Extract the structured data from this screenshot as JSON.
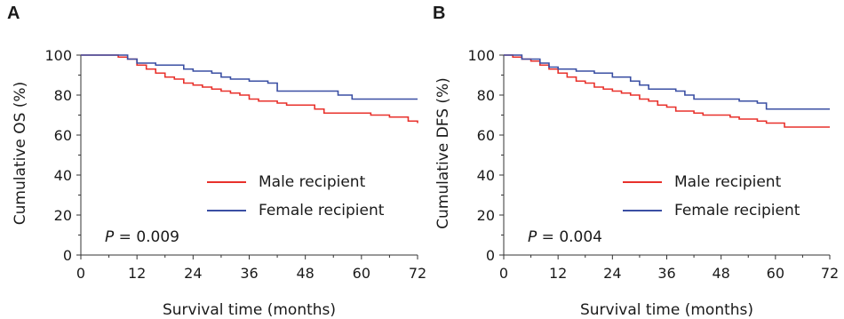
{
  "panels": [
    {
      "letter": "A"
    },
    {
      "letter": "B"
    }
  ],
  "chart_data": [
    {
      "type": "line",
      "panel": "A",
      "title": "",
      "xlabel": "Survival time (months)",
      "ylabel": "Cumulative OS (%)",
      "xlim": [
        0,
        72
      ],
      "ylim": [
        0,
        100
      ],
      "xticks": [
        0,
        12,
        24,
        36,
        48,
        60,
        72
      ],
      "yticks": [
        0,
        20,
        40,
        60,
        80,
        100
      ],
      "grid": false,
      "legend_position": "lower-right",
      "annotation": {
        "p_label": "P",
        "p_value": "= 0.009"
      },
      "series": [
        {
          "name": "Male recipient",
          "color": "#e8312b",
          "x": [
            0,
            6,
            8,
            10,
            12,
            14,
            16,
            18,
            20,
            22,
            24,
            26,
            28,
            30,
            32,
            34,
            36,
            38,
            40,
            42,
            44,
            46,
            48,
            50,
            52,
            54,
            56,
            60,
            62,
            64,
            66,
            70,
            72
          ],
          "y": [
            100,
            100,
            99,
            98,
            95,
            93,
            91,
            89,
            88,
            86,
            85,
            84,
            83,
            82,
            81,
            80,
            78,
            77,
            77,
            76,
            75,
            75,
            75,
            73,
            71,
            71,
            71,
            71,
            70,
            70,
            69,
            67,
            66
          ]
        },
        {
          "name": "Female recipient",
          "color": "#3a4fa3",
          "x": [
            0,
            6,
            10,
            12,
            14,
            16,
            18,
            22,
            24,
            28,
            30,
            32,
            36,
            38,
            40,
            42,
            48,
            54,
            55,
            56,
            58,
            60,
            72
          ],
          "y": [
            100,
            100,
            98,
            96,
            96,
            95,
            95,
            93,
            92,
            91,
            89,
            88,
            87,
            87,
            86,
            82,
            82,
            82,
            80,
            80,
            78,
            78,
            78
          ]
        }
      ]
    },
    {
      "type": "line",
      "panel": "B",
      "title": "",
      "xlabel": "Survival time (months)",
      "ylabel": "Cumulative DFS (%)",
      "xlim": [
        0,
        72
      ],
      "ylim": [
        0,
        100
      ],
      "xticks": [
        0,
        12,
        24,
        36,
        48,
        60,
        72
      ],
      "yticks": [
        0,
        20,
        40,
        60,
        80,
        100
      ],
      "grid": false,
      "legend_position": "lower-right",
      "annotation": {
        "p_label": "P",
        "p_value": "= 0.004"
      },
      "series": [
        {
          "name": "Male recipient",
          "color": "#e8312b",
          "x": [
            0,
            2,
            4,
            6,
            8,
            10,
            12,
            14,
            16,
            18,
            20,
            22,
            24,
            26,
            28,
            30,
            32,
            34,
            36,
            38,
            40,
            42,
            44,
            48,
            50,
            52,
            54,
            56,
            58,
            60,
            62,
            66,
            72
          ],
          "y": [
            100,
            99,
            98,
            97,
            95,
            93,
            91,
            89,
            87,
            86,
            84,
            83,
            82,
            81,
            80,
            78,
            77,
            75,
            74,
            72,
            72,
            71,
            70,
            70,
            69,
            68,
            68,
            67,
            66,
            66,
            64,
            64,
            64
          ]
        },
        {
          "name": "Female recipient",
          "color": "#3a4fa3",
          "x": [
            0,
            4,
            8,
            10,
            12,
            16,
            20,
            24,
            28,
            30,
            32,
            34,
            38,
            40,
            42,
            48,
            52,
            54,
            56,
            58,
            62,
            72
          ],
          "y": [
            100,
            98,
            96,
            94,
            93,
            92,
            91,
            89,
            87,
            85,
            83,
            83,
            82,
            80,
            78,
            78,
            77,
            77,
            76,
            73,
            73,
            73
          ]
        }
      ]
    }
  ]
}
